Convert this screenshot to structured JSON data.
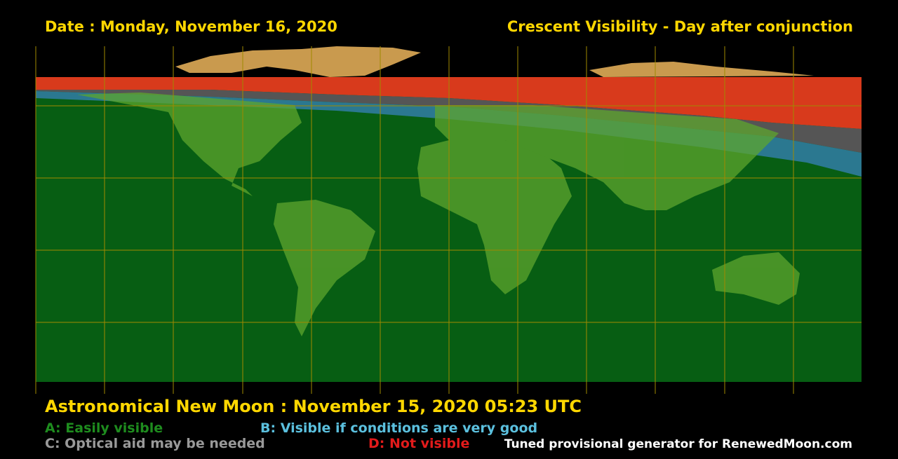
{
  "header": {
    "date": "Date : Monday, November 16, 2020",
    "title": "Crescent Visibility - Day after conjunction"
  },
  "new_moon": "Astronomical New Moon : November 15, 2020 05:23 UTC",
  "legend": {
    "a": "A: Easily visible",
    "b": "B: Visible if conditions are very good",
    "c": "C: Optical aid may be needed",
    "d": "D: Not visible"
  },
  "credit": "Tuned provisional generator for RenewedMoon.com"
}
